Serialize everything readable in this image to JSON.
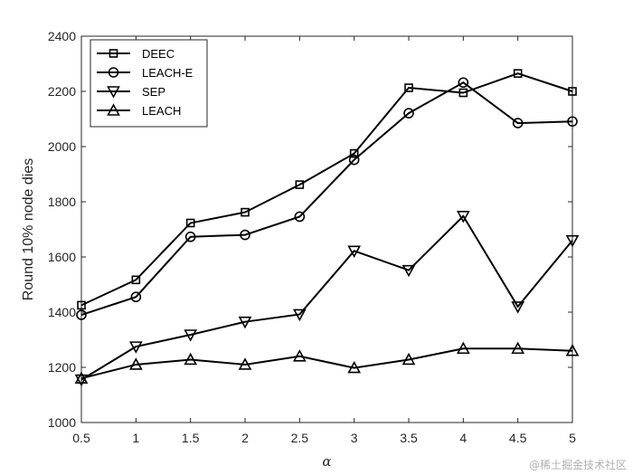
{
  "watermark": "@稀土掘金技术社区",
  "chart_data": {
    "type": "line",
    "title": "",
    "xlabel": "α",
    "ylabel": "Round 10% node dies",
    "xlim": [
      0.5,
      5
    ],
    "ylim": [
      1000,
      2400
    ],
    "x": [
      0.5,
      1,
      1.5,
      2,
      2.5,
      3,
      3.5,
      4,
      4.5,
      5
    ],
    "xticks": [
      "0.5",
      "1",
      "1.5",
      "2",
      "2.5",
      "3",
      "3.5",
      "4",
      "4.5",
      "5"
    ],
    "yticks": [
      "1000",
      "1200",
      "1400",
      "1600",
      "1800",
      "2000",
      "2200",
      "2400"
    ],
    "grid": false,
    "legend_position": "top-left",
    "series": [
      {
        "name": "DEEC",
        "marker": "square",
        "values": [
          1425,
          1517,
          1723,
          1762,
          1862,
          1975,
          2213,
          2195,
          2265,
          2200
        ]
      },
      {
        "name": "LEACH-E",
        "marker": "circle",
        "values": [
          1390,
          1455,
          1673,
          1680,
          1746,
          1952,
          2121,
          2232,
          2085,
          2091
        ]
      },
      {
        "name": "SEP",
        "marker": "triangle-down",
        "values": [
          1155,
          1275,
          1318,
          1365,
          1392,
          1622,
          1552,
          1748,
          1420,
          1660
        ]
      },
      {
        "name": "LEACH",
        "marker": "triangle-up",
        "values": [
          1160,
          1210,
          1228,
          1210,
          1240,
          1198,
          1228,
          1268,
          1268,
          1260
        ]
      }
    ]
  }
}
